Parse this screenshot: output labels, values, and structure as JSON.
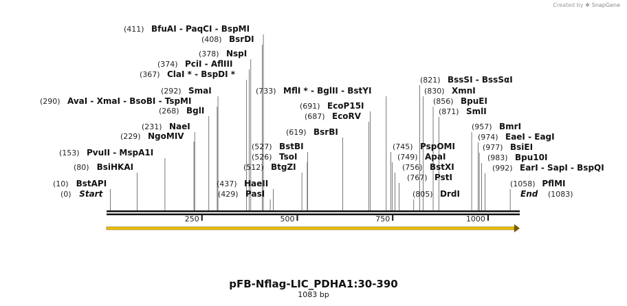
{
  "header": {
    "credit_prefix": "Created by",
    "credit_brand": "SnapGene"
  },
  "map": {
    "title": "pFB-Nflag-LIC_PDHA1:30-390",
    "length_label": "1083 bp",
    "ticks": [
      "250",
      "500",
      "750",
      "1000"
    ],
    "colors": {
      "backbone": "#111111",
      "feature_fill": "#f2c300",
      "feature_edge": "#7a5a00",
      "connector": "#555555"
    },
    "sites": [
      {
        "pos": 0,
        "pos_label": "(0)",
        "names": [
          "Start"
        ]
      },
      {
        "pos": 10,
        "pos_label": "(10)",
        "names": [
          "BstAPI"
        ]
      },
      {
        "pos": 80,
        "pos_label": "(80)",
        "names": [
          "BsiHKAI"
        ]
      },
      {
        "pos": 153,
        "pos_label": "(153)",
        "names": [
          "PvuII",
          "MspA1I"
        ]
      },
      {
        "pos": 229,
        "pos_label": "(229)",
        "names": [
          "NgoMIV"
        ]
      },
      {
        "pos": 231,
        "pos_label": "(231)",
        "names": [
          "NaeI"
        ]
      },
      {
        "pos": 268,
        "pos_label": "(268)",
        "names": [
          "BglI"
        ]
      },
      {
        "pos": 290,
        "pos_label": "(290)",
        "names": [
          "AvaI",
          "XmaI",
          "BsoBI",
          "TspMI"
        ]
      },
      {
        "pos": 292,
        "pos_label": "(292)",
        "names": [
          "SmaI"
        ]
      },
      {
        "pos": 367,
        "pos_label": "(367)",
        "names": [
          "ClaI *",
          "BspDI *"
        ]
      },
      {
        "pos": 374,
        "pos_label": "(374)",
        "names": [
          "PciI",
          "AflIII"
        ]
      },
      {
        "pos": 378,
        "pos_label": "(378)",
        "names": [
          "NspI"
        ]
      },
      {
        "pos": 408,
        "pos_label": "(408)",
        "names": [
          "BsrDI"
        ]
      },
      {
        "pos": 411,
        "pos_label": "(411)",
        "names": [
          "BfuAI",
          "PaqCI",
          "BspMI"
        ]
      },
      {
        "pos": 429,
        "pos_label": "(429)",
        "names": [
          "PasI"
        ]
      },
      {
        "pos": 437,
        "pos_label": "(437)",
        "names": [
          "HaeII"
        ]
      },
      {
        "pos": 512,
        "pos_label": "(512)",
        "names": [
          "BtgZI"
        ]
      },
      {
        "pos": 526,
        "pos_label": "(526)",
        "names": [
          "TsoI"
        ]
      },
      {
        "pos": 527,
        "pos_label": "(527)",
        "names": [
          "BstBI"
        ]
      },
      {
        "pos": 619,
        "pos_label": "(619)",
        "names": [
          "BsrBI"
        ]
      },
      {
        "pos": 687,
        "pos_label": "(687)",
        "names": [
          "EcoRV"
        ]
      },
      {
        "pos": 691,
        "pos_label": "(691)",
        "names": [
          "EcoP15I"
        ]
      },
      {
        "pos": 733,
        "pos_label": "(733)",
        "names": [
          "MflI *",
          "BglII",
          "BstYI"
        ]
      },
      {
        "pos": 745,
        "pos_label": "(745)",
        "names": [
          "PspOMI"
        ]
      },
      {
        "pos": 749,
        "pos_label": "(749)",
        "names": [
          "ApaI"
        ]
      },
      {
        "pos": 756,
        "pos_label": "(756)",
        "names": [
          "BstXI"
        ]
      },
      {
        "pos": 767,
        "pos_label": "(767)",
        "names": [
          "PstI"
        ]
      },
      {
        "pos": 805,
        "pos_label": "(805)",
        "names": [
          "DrdI"
        ]
      },
      {
        "pos": 821,
        "pos_label": "(821)",
        "names": [
          "BssSI",
          "BssSαI"
        ]
      },
      {
        "pos": 830,
        "pos_label": "(830)",
        "names": [
          "XmnI"
        ]
      },
      {
        "pos": 856,
        "pos_label": "(856)",
        "names": [
          "BpuEI"
        ]
      },
      {
        "pos": 871,
        "pos_label": "(871)",
        "names": [
          "SmlI"
        ]
      },
      {
        "pos": 957,
        "pos_label": "(957)",
        "names": [
          "BmrI"
        ]
      },
      {
        "pos": 974,
        "pos_label": "(974)",
        "names": [
          "EaeI",
          "EagI"
        ]
      },
      {
        "pos": 977,
        "pos_label": "(977)",
        "names": [
          "BsiEI"
        ]
      },
      {
        "pos": 983,
        "pos_label": "(983)",
        "names": [
          "Bpu10I"
        ]
      },
      {
        "pos": 992,
        "pos_label": "(992)",
        "names": [
          "EarI",
          "SapI",
          "BspQI"
        ]
      },
      {
        "pos": 1058,
        "pos_label": "(1058)",
        "names": [
          "PflMI"
        ]
      },
      {
        "pos": 1083,
        "pos_label": "(1083)",
        "names": [
          "End"
        ]
      }
    ]
  }
}
